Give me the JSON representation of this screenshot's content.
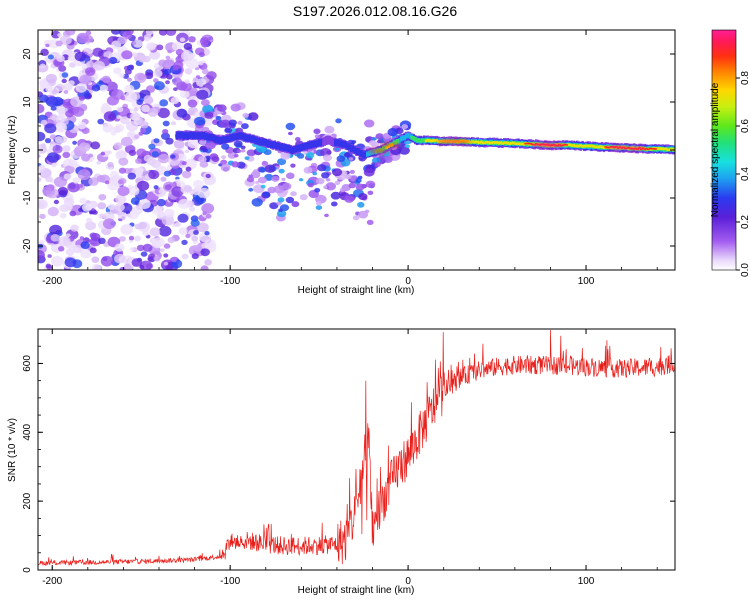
{
  "title": "S197.2026.012.08.16.G26",
  "chart_data": [
    {
      "type": "heatmap",
      "xlabel": "Height of straight line (km)",
      "ylabel": "Frequency (Hz)",
      "xlim": [
        -208,
        150
      ],
      "ylim": [
        -25,
        25
      ],
      "xticks": [
        -200,
        -100,
        0,
        100
      ],
      "xtick_labels": [
        "-200",
        "-100",
        "0",
        "100"
      ],
      "yticks": [
        -20,
        -10,
        0,
        10,
        20
      ],
      "ytick_labels": [
        "-20",
        "-10",
        "0",
        "10",
        "20"
      ],
      "colorbar": {
        "label": "Normalized spectral amplitude",
        "range": [
          0,
          1
        ],
        "ticks": [
          0.0,
          0.2,
          0.4,
          0.6,
          0.8
        ],
        "tick_labels": [
          "0.0",
          "0.2",
          "0.4",
          "0.6",
          "0.8"
        ]
      },
      "ridge": {
        "description": "dominant frequency track",
        "x_km": [
          -130,
          -115,
          -105,
          -95,
          -85,
          -75,
          -65,
          -55,
          -45,
          -35,
          -25,
          -15,
          -10,
          -5,
          0,
          5,
          10,
          20,
          30,
          40,
          50,
          60,
          70,
          80,
          90,
          100,
          110,
          120,
          130,
          140,
          150
        ],
        "freq_hz": [
          3,
          3,
          2,
          3,
          2,
          1,
          0,
          1,
          2,
          1,
          -1,
          0,
          1,
          2,
          3,
          2,
          2,
          1.8,
          1.8,
          1.6,
          1.5,
          1.4,
          1.2,
          1,
          1,
          0.8,
          0.6,
          0.5,
          0.3,
          0.2,
          0.1
        ],
        "amplitude": [
          0.3,
          0.3,
          0.35,
          0.3,
          0.35,
          0.3,
          0.3,
          0.3,
          0.25,
          0.3,
          0.35,
          0.6,
          0.75,
          0.5,
          0.5,
          0.6,
          0.7,
          0.8,
          0.85,
          0.85,
          0.8,
          0.8,
          0.9,
          0.95,
          0.85,
          0.8,
          0.85,
          0.95,
          0.9,
          0.85,
          0.8
        ]
      }
    },
    {
      "type": "line",
      "xlabel": "Height of straight line (km)",
      "ylabel": "SNR (10 * v/v)",
      "xlim": [
        -208,
        150
      ],
      "ylim": [
        0,
        700
      ],
      "xticks": [
        -200,
        -100,
        0,
        100
      ],
      "xtick_labels": [
        "-200",
        "-100",
        "0",
        "100"
      ],
      "yticks": [
        0,
        200,
        400,
        600
      ],
      "ytick_labels": [
        "0",
        "200",
        "400",
        "600"
      ],
      "series": [
        {
          "name": "SNR",
          "color": "#e8201c",
          "x": [
            -208,
            -180,
            -150,
            -120,
            -105,
            -100,
            -90,
            -80,
            -70,
            -60,
            -50,
            -40,
            -35,
            -30,
            -25,
            -22,
            -20,
            -15,
            -10,
            -5,
            0,
            5,
            10,
            15,
            20,
            30,
            40,
            50,
            60,
            80,
            100,
            120,
            140,
            150
          ],
          "values": [
            20,
            22,
            25,
            30,
            40,
            80,
            85,
            75,
            70,
            70,
            72,
            75,
            90,
            160,
            310,
            380,
            120,
            190,
            250,
            300,
            330,
            380,
            430,
            480,
            520,
            560,
            580,
            590,
            595,
            595,
            590,
            585,
            590,
            600
          ]
        }
      ]
    }
  ]
}
